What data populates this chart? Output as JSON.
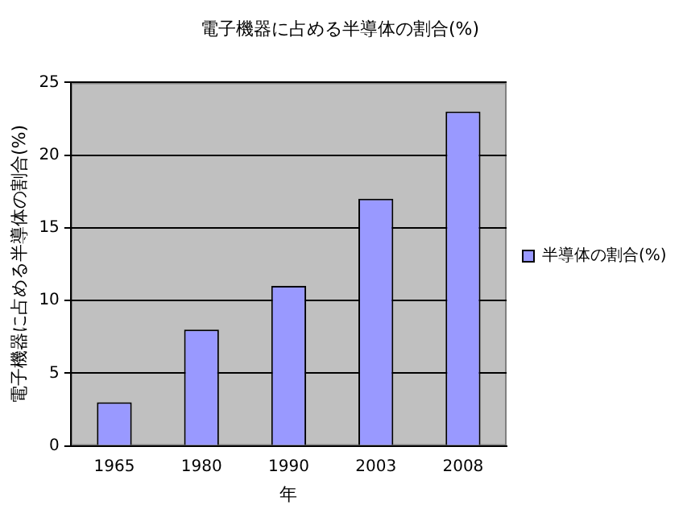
{
  "chart_data": {
    "type": "bar",
    "title": "電子機器に占める半導体の割合(%)",
    "xlabel": "年",
    "ylabel": "電子機器に占める半導体の割合(%)",
    "categories": [
      "1965",
      "1980",
      "1990",
      "2003",
      "2008"
    ],
    "series": [
      {
        "name": "半導体の割合(%)",
        "color": "#9999ff",
        "values": [
          3,
          8,
          11,
          17,
          23
        ]
      }
    ],
    "ylim": [
      0,
      25
    ],
    "yticks": [
      0,
      5,
      10,
      15,
      20,
      25
    ],
    "grid": "y",
    "legend": "right"
  }
}
